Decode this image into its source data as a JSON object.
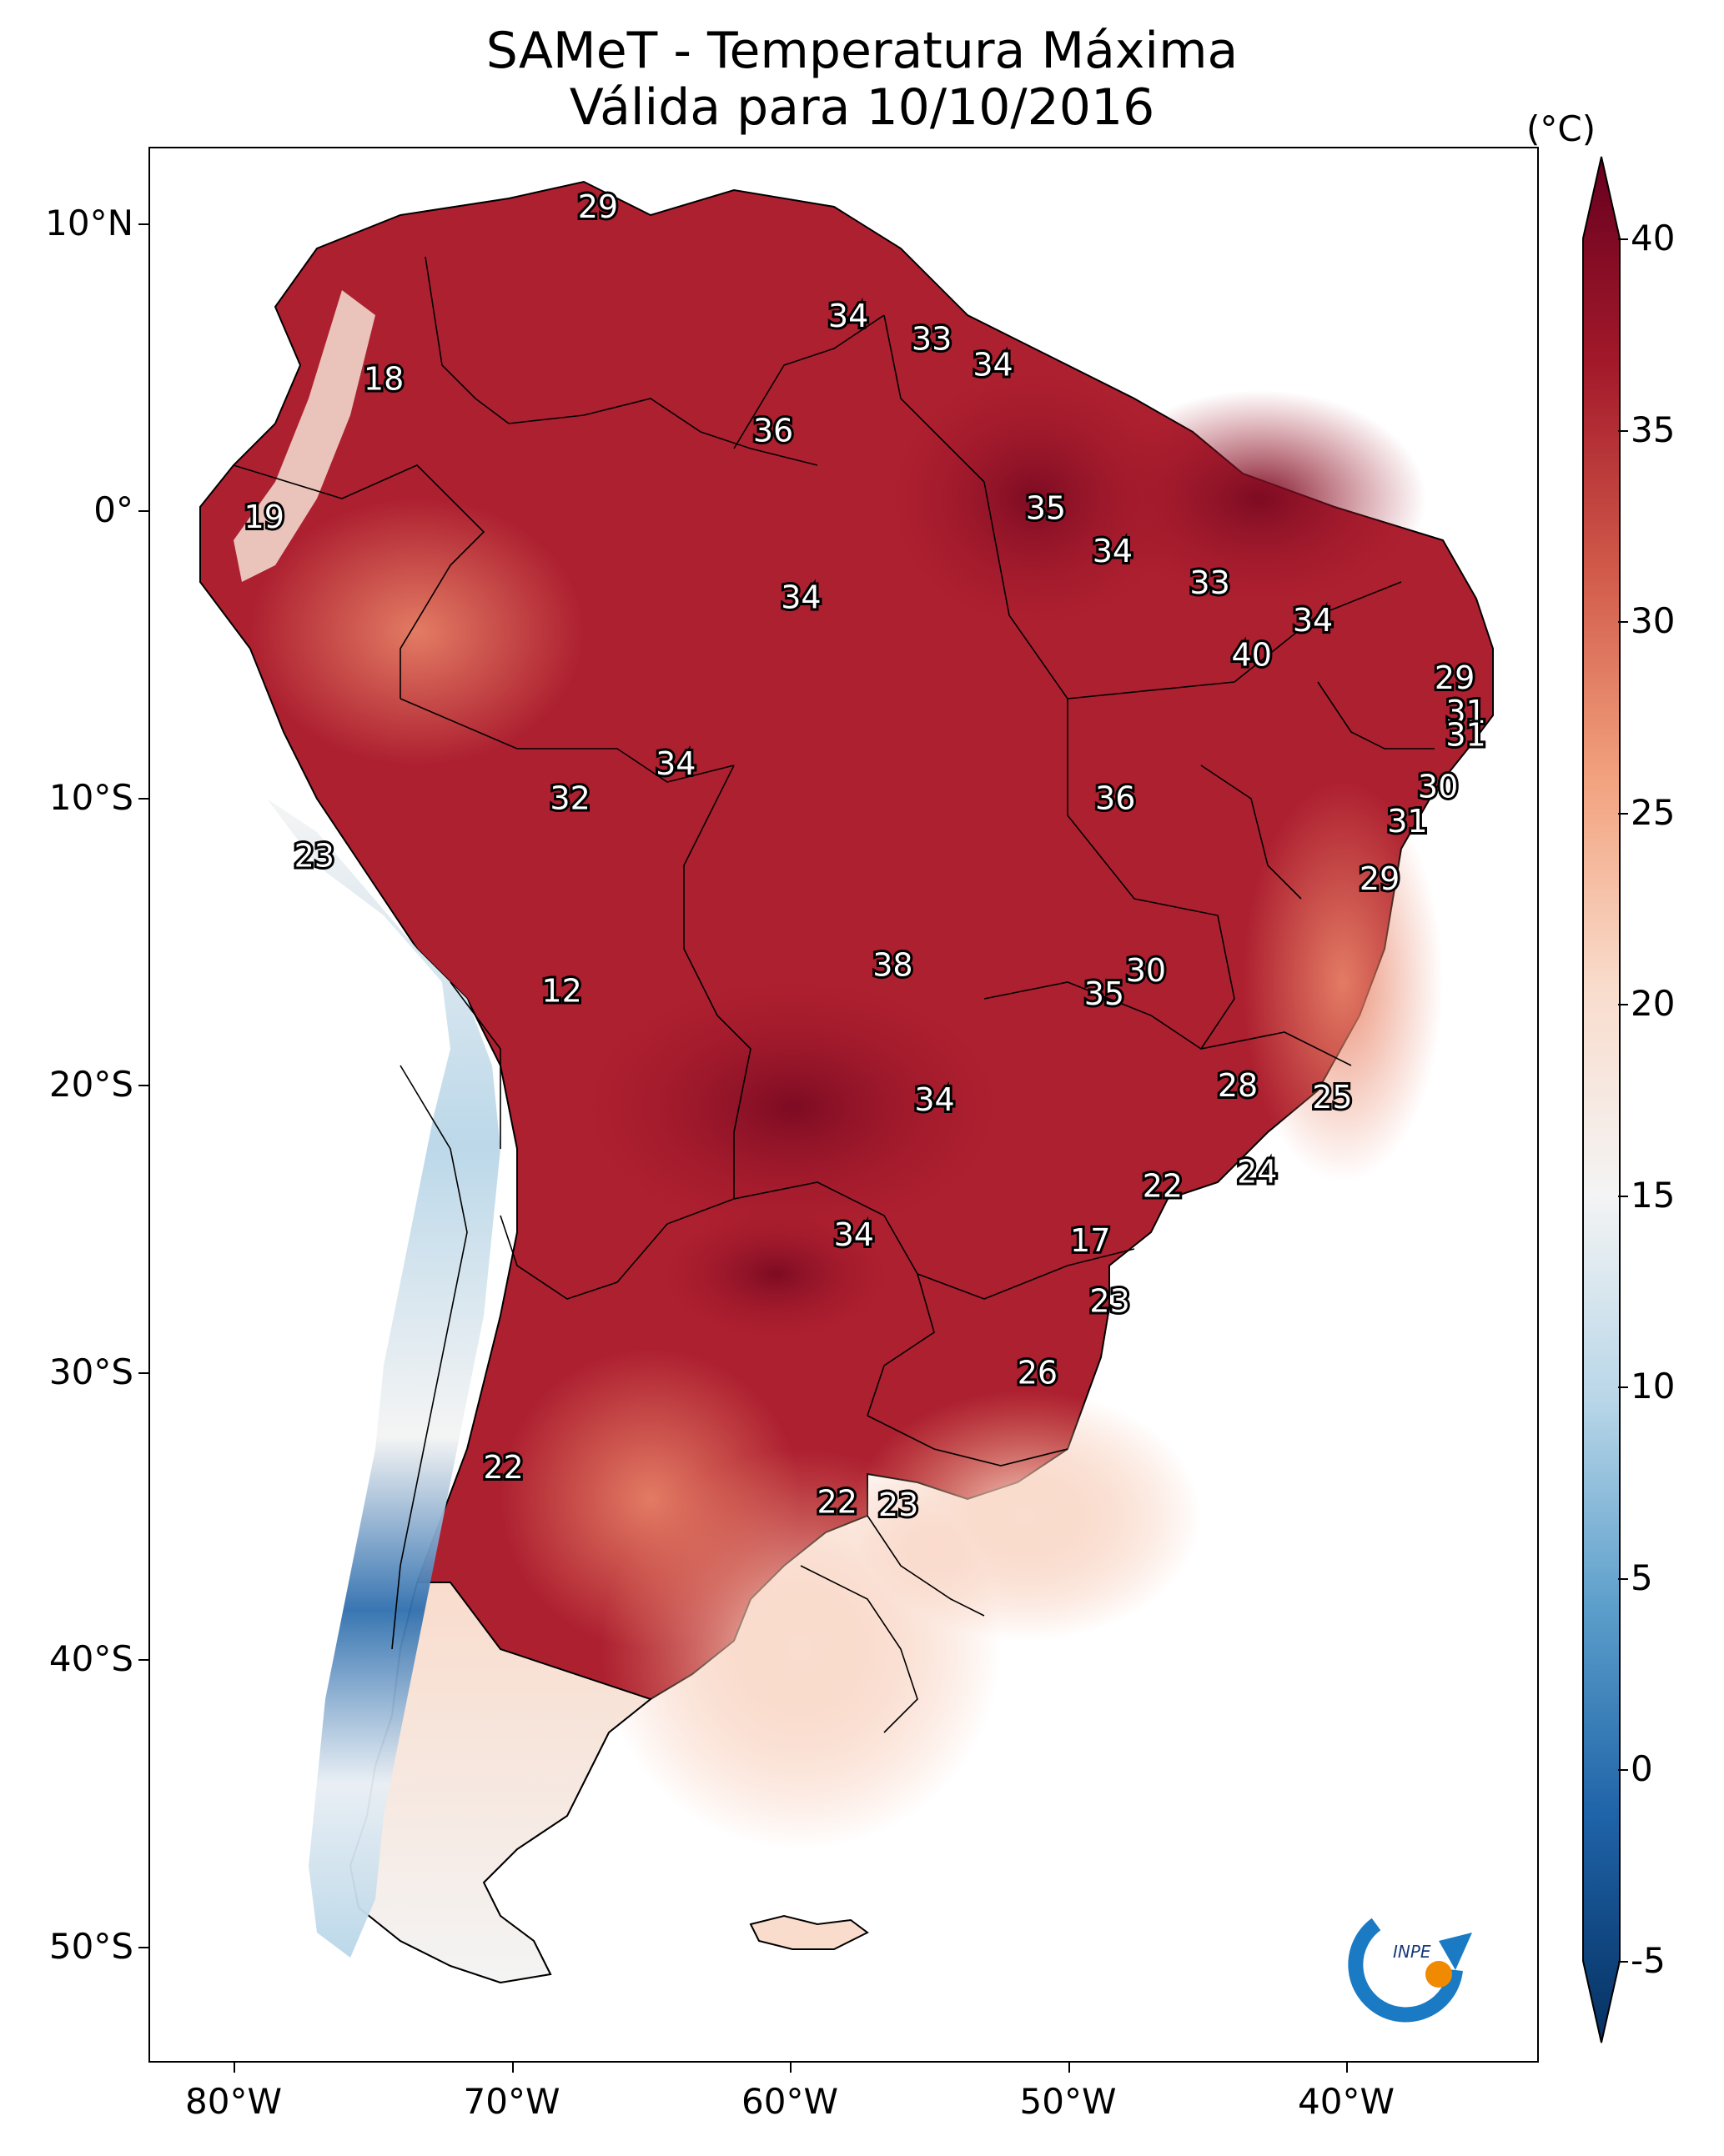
{
  "title": {
    "line1": "SAMeT - Temperatura Máxima",
    "line2": "Válida para 10/10/2016"
  },
  "colorbar": {
    "unit": "(°C)",
    "ticks": [
      "40",
      "35",
      "30",
      "25",
      "20",
      "15",
      "10",
      "5",
      "0",
      "-5"
    ],
    "min": -5,
    "max": 40,
    "colors": {
      "c40": "#67001f",
      "c35": "#a3192a",
      "c30": "#d15a4a",
      "c25": "#f2a27e",
      "c20": "#f9dccc",
      "c15": "#f4f4f4",
      "c10": "#b8d6e8",
      "c5": "#5b9ecb",
      "c0": "#1f63a8",
      "cm5": "#053061"
    }
  },
  "axes": {
    "lat_ticks": [
      "10°N",
      "0°",
      "10°S",
      "20°S",
      "30°S",
      "40°S",
      "50°S"
    ],
    "lon_ticks": [
      "80°W",
      "70°W",
      "60°W",
      "50°W",
      "40°W"
    ]
  },
  "logo": {
    "text": "INPE"
  },
  "temperature_labels": [
    {
      "value": "29",
      "lon": -66.9,
      "lat": 10.5
    },
    {
      "value": "34",
      "lon": -57.9,
      "lat": 6.7
    },
    {
      "value": "33",
      "lon": -54.9,
      "lat": 5.9
    },
    {
      "value": "34",
      "lon": -52.7,
      "lat": 5.0
    },
    {
      "value": "18",
      "lon": -74.6,
      "lat": 4.5
    },
    {
      "value": "36",
      "lon": -60.6,
      "lat": 2.7
    },
    {
      "value": "35",
      "lon": -50.8,
      "lat": 0.0
    },
    {
      "value": "19",
      "lon": -78.9,
      "lat": -0.3
    },
    {
      "value": "34",
      "lon": -48.4,
      "lat": -1.5
    },
    {
      "value": "33",
      "lon": -44.9,
      "lat": -2.6
    },
    {
      "value": "34",
      "lon": -59.6,
      "lat": -3.1
    },
    {
      "value": "34",
      "lon": -41.2,
      "lat": -3.9
    },
    {
      "value": "40",
      "lon": -43.4,
      "lat": -5.1
    },
    {
      "value": "29",
      "lon": -36.1,
      "lat": -5.9
    },
    {
      "value": "31",
      "lon": -35.7,
      "lat": -7.1
    },
    {
      "value": "31",
      "lon": -35.7,
      "lat": -7.9
    },
    {
      "value": "34",
      "lon": -64.1,
      "lat": -8.9
    },
    {
      "value": "30",
      "lon": -36.7,
      "lat": -9.7
    },
    {
      "value": "32",
      "lon": -67.9,
      "lat": -10.1
    },
    {
      "value": "36",
      "lon": -48.3,
      "lat": -10.1
    },
    {
      "value": "31",
      "lon": -37.8,
      "lat": -10.9
    },
    {
      "value": "23",
      "lon": -77.1,
      "lat": -12.1
    },
    {
      "value": "29",
      "lon": -38.8,
      "lat": -12.9
    },
    {
      "value": "38",
      "lon": -56.3,
      "lat": -15.9
    },
    {
      "value": "30",
      "lon": -47.2,
      "lat": -16.1
    },
    {
      "value": "12",
      "lon": -68.2,
      "lat": -16.8
    },
    {
      "value": "35",
      "lon": -48.7,
      "lat": -16.9
    },
    {
      "value": "28",
      "lon": -43.9,
      "lat": -20.1
    },
    {
      "value": "25",
      "lon": -40.5,
      "lat": -20.5
    },
    {
      "value": "34",
      "lon": -54.8,
      "lat": -20.6
    },
    {
      "value": "24",
      "lon": -43.2,
      "lat": -23.1
    },
    {
      "value": "22",
      "lon": -46.6,
      "lat": -23.6
    },
    {
      "value": "34",
      "lon": -57.7,
      "lat": -25.3
    },
    {
      "value": "17",
      "lon": -49.2,
      "lat": -25.5
    },
    {
      "value": "23",
      "lon": -48.5,
      "lat": -27.6
    },
    {
      "value": "26",
      "lon": -51.1,
      "lat": -30.1
    },
    {
      "value": "22",
      "lon": -70.3,
      "lat": -33.4
    },
    {
      "value": "22",
      "lon": -58.3,
      "lat": -34.6
    },
    {
      "value": "23",
      "lon": -56.1,
      "lat": -34.7
    }
  ]
}
